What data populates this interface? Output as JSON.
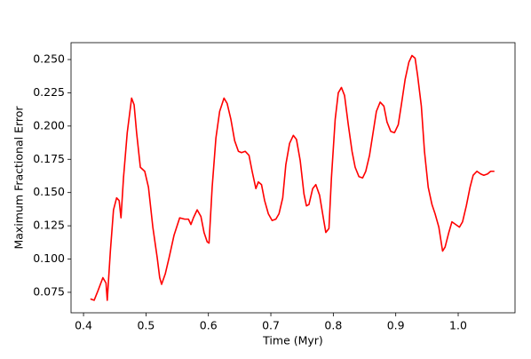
{
  "chart_data": {
    "type": "line",
    "xlabel": "Time (Myr)",
    "ylabel": "Maximum Fractional Error",
    "series": [
      {
        "color": "#ff0000",
        "x": [
          0.411,
          0.417,
          0.423,
          0.431,
          0.436,
          0.438,
          0.443,
          0.448,
          0.453,
          0.457,
          0.46,
          0.464,
          0.47,
          0.477,
          0.481,
          0.485,
          0.491,
          0.498,
          0.504,
          0.511,
          0.518,
          0.522,
          0.525,
          0.531,
          0.537,
          0.545,
          0.554,
          0.562,
          0.568,
          0.572,
          0.576,
          0.582,
          0.588,
          0.593,
          0.598,
          0.601,
          0.606,
          0.612,
          0.618,
          0.625,
          0.63,
          0.636,
          0.642,
          0.648,
          0.653,
          0.659,
          0.665,
          0.67,
          0.676,
          0.68,
          0.685,
          0.69,
          0.696,
          0.702,
          0.708,
          0.713,
          0.719,
          0.724,
          0.73,
          0.736,
          0.741,
          0.747,
          0.753,
          0.757,
          0.761,
          0.767,
          0.772,
          0.778,
          0.784,
          0.788,
          0.793,
          0.797,
          0.803,
          0.808,
          0.813,
          0.818,
          0.824,
          0.83,
          0.835,
          0.841,
          0.847,
          0.852,
          0.858,
          0.864,
          0.869,
          0.875,
          0.881,
          0.886,
          0.892,
          0.898,
          0.904,
          0.909,
          0.915,
          0.921,
          0.926,
          0.931,
          0.935,
          0.941,
          0.946,
          0.952,
          0.958,
          0.963,
          0.969,
          0.975,
          0.979,
          0.985,
          0.99,
          0.996,
          1.002,
          1.007,
          1.013,
          1.019,
          1.024,
          1.03,
          1.036,
          1.041,
          1.047,
          1.052,
          1.058
        ],
        "values": [
          0.07,
          0.069,
          0.076,
          0.086,
          0.082,
          0.069,
          0.106,
          0.137,
          0.146,
          0.144,
          0.131,
          0.161,
          0.195,
          0.221,
          0.216,
          0.195,
          0.169,
          0.166,
          0.154,
          0.124,
          0.101,
          0.086,
          0.081,
          0.089,
          0.101,
          0.118,
          0.131,
          0.13,
          0.13,
          0.126,
          0.131,
          0.137,
          0.132,
          0.12,
          0.113,
          0.112,
          0.154,
          0.191,
          0.211,
          0.221,
          0.217,
          0.205,
          0.189,
          0.181,
          0.18,
          0.181,
          0.178,
          0.166,
          0.153,
          0.158,
          0.156,
          0.144,
          0.134,
          0.129,
          0.13,
          0.134,
          0.146,
          0.171,
          0.187,
          0.193,
          0.19,
          0.174,
          0.149,
          0.14,
          0.141,
          0.153,
          0.156,
          0.148,
          0.131,
          0.12,
          0.123,
          0.161,
          0.205,
          0.225,
          0.229,
          0.223,
          0.201,
          0.181,
          0.169,
          0.162,
          0.161,
          0.166,
          0.178,
          0.196,
          0.211,
          0.218,
          0.215,
          0.203,
          0.196,
          0.195,
          0.201,
          0.216,
          0.235,
          0.248,
          0.253,
          0.251,
          0.238,
          0.215,
          0.181,
          0.154,
          0.141,
          0.134,
          0.124,
          0.106,
          0.109,
          0.12,
          0.128,
          0.126,
          0.124,
          0.128,
          0.14,
          0.154,
          0.163,
          0.166,
          0.164,
          0.163,
          0.164,
          0.166,
          0.166
        ]
      }
    ],
    "xlim": [
      0.38,
      1.091
    ],
    "ylim": [
      0.0596,
      0.2627
    ],
    "xticks": [
      0.4,
      0.5,
      0.6,
      0.7,
      0.8,
      0.9,
      {
        "value": 1.0,
        "label": "1.0"
      }
    ],
    "yticks": [
      {
        "value": 0.075,
        "label": "0.075"
      },
      {
        "value": 0.1,
        "label": "0.100"
      },
      {
        "value": 0.125,
        "label": "0.125"
      },
      {
        "value": 0.15,
        "label": "0.150"
      },
      {
        "value": 0.175,
        "label": "0.175"
      },
      {
        "value": 0.2,
        "label": "0.200"
      },
      {
        "value": 0.225,
        "label": "0.225"
      },
      {
        "value": 0.25,
        "label": "0.250"
      }
    ]
  }
}
